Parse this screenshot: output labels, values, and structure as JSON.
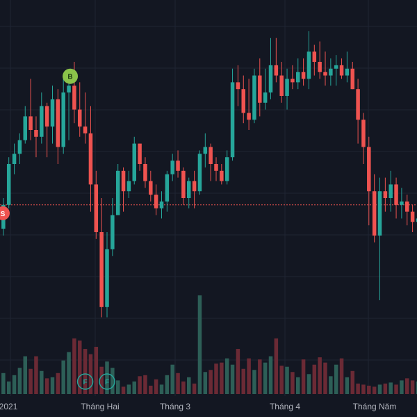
{
  "chart_data": {
    "type": "candlestick",
    "background": "#131722",
    "colors": {
      "up": "#26a69a",
      "down": "#ef5350",
      "vol_up": "#2d5f57",
      "vol_down": "#6b2a35",
      "grid": "#1f2433",
      "ref_line": "#ef5350",
      "marker_b": "#8bc34a",
      "marker_f": "#26a69a",
      "marker_s": "#ef5350"
    },
    "x_ticks": [
      "2021",
      "Tháng Hai",
      "Tháng 3",
      "Tháng 4",
      "Tháng Năm"
    ],
    "grid": true,
    "price_scale": {
      "min": 0,
      "max": 100
    },
    "reference_price": 48,
    "markers": [
      {
        "label": "B",
        "index": 13,
        "kind": "buy"
      },
      {
        "label": "F",
        "index": 16,
        "kind": "flag"
      },
      {
        "label": "F",
        "index": 20,
        "kind": "flag"
      },
      {
        "label": "S",
        "index": 0,
        "kind": "sell"
      }
    ],
    "candles": [
      [
        38,
        43,
        34,
        41
      ],
      [
        41,
        50,
        39,
        48
      ],
      [
        48,
        62,
        47,
        60
      ],
      [
        60,
        66,
        57,
        63
      ],
      [
        63,
        69,
        60,
        67
      ],
      [
        67,
        77,
        66,
        74
      ],
      [
        74,
        85,
        67,
        70
      ],
      [
        70,
        74,
        62,
        68
      ],
      [
        68,
        81,
        66,
        77
      ],
      [
        77,
        78,
        62,
        71
      ],
      [
        71,
        83,
        66,
        79
      ],
      [
        79,
        82,
        60,
        65
      ],
      [
        65,
        85,
        63,
        81
      ],
      [
        81,
        87,
        67,
        83
      ],
      [
        83,
        90,
        72,
        76
      ],
      [
        76,
        84,
        68,
        71
      ],
      [
        71,
        81,
        66,
        69
      ],
      [
        69,
        77,
        46,
        54
      ],
      [
        54,
        58,
        38,
        40
      ],
      [
        40,
        50,
        15,
        18
      ],
      [
        18,
        40,
        15,
        35
      ],
      [
        35,
        50,
        33,
        45
      ],
      [
        45,
        60,
        45,
        58
      ],
      [
        58,
        59,
        46,
        52
      ],
      [
        52,
        58,
        50,
        55
      ],
      [
        55,
        68,
        54,
        66
      ],
      [
        66,
        66,
        58,
        60
      ],
      [
        60,
        62,
        53,
        55
      ],
      [
        55,
        58,
        49,
        51
      ],
      [
        51,
        54,
        45,
        47
      ],
      [
        47,
        52,
        44,
        49
      ],
      [
        49,
        58,
        46,
        57
      ],
      [
        57,
        63,
        55,
        61
      ],
      [
        61,
        64,
        56,
        58
      ],
      [
        58,
        59,
        48,
        50
      ],
      [
        50,
        56,
        47,
        55
      ],
      [
        55,
        58,
        47,
        52
      ],
      [
        52,
        64,
        51,
        63
      ],
      [
        63,
        69,
        59,
        65
      ],
      [
        65,
        66,
        55,
        60
      ],
      [
        60,
        62,
        55,
        58
      ],
      [
        58,
        60,
        54,
        55
      ],
      [
        55,
        64,
        54,
        62
      ],
      [
        62,
        88,
        61,
        84
      ],
      [
        84,
        89,
        77,
        82
      ],
      [
        82,
        86,
        72,
        75
      ],
      [
        75,
        85,
        70,
        73
      ],
      [
        73,
        88,
        72,
        86
      ],
      [
        86,
        91,
        74,
        78
      ],
      [
        78,
        88,
        76,
        81
      ],
      [
        81,
        97,
        79,
        89
      ],
      [
        89,
        97,
        84,
        86
      ],
      [
        86,
        90,
        78,
        80
      ],
      [
        80,
        88,
        76,
        85
      ],
      [
        85,
        89,
        82,
        84
      ],
      [
        84,
        91,
        82,
        87
      ],
      [
        87,
        91,
        83,
        85
      ],
      [
        85,
        99,
        82,
        93
      ],
      [
        93,
        95,
        86,
        90
      ],
      [
        90,
        96,
        85,
        87
      ],
      [
        87,
        93,
        83,
        86
      ],
      [
        86,
        91,
        83,
        88
      ],
      [
        88,
        92,
        83,
        89
      ],
      [
        89,
        91,
        85,
        86
      ],
      [
        86,
        93,
        84,
        88
      ],
      [
        88,
        90,
        82,
        82
      ],
      [
        82,
        85,
        66,
        73
      ],
      [
        73,
        75,
        60,
        65
      ],
      [
        65,
        68,
        42,
        52
      ],
      [
        52,
        57,
        37,
        39
      ],
      [
        39,
        56,
        20,
        52
      ],
      [
        52,
        56,
        46,
        50
      ],
      [
        50,
        58,
        46,
        54
      ],
      [
        54,
        56,
        44,
        48
      ],
      [
        48,
        53,
        44,
        49
      ],
      [
        49,
        51,
        42,
        46
      ],
      [
        46,
        48,
        40,
        43
      ],
      [
        43,
        47,
        38,
        44
      ],
      [
        44,
        46,
        39,
        42
      ]
    ],
    "volumes": [
      1.0,
      2.0,
      1.2,
      1.8,
      2.5,
      3.6,
      2.4,
      3.6,
      2.2,
      1.5,
      1.6,
      2.0,
      3.2,
      4.0,
      5.3,
      5.1,
      4.3,
      3.8,
      4.5,
      2.6,
      3.1,
      2.5,
      1.3,
      0.7,
      0.9,
      1.2,
      1.7,
      1.8,
      0.8,
      1.4,
      0.9,
      1.8,
      2.8,
      2.0,
      1.2,
      1.6,
      1.0,
      9.4,
      2.1,
      2.3,
      2.9,
      3.0,
      3.4,
      2.8,
      4.3,
      2.4,
      3.4,
      2.3,
      3.3,
      3.0,
      3.6,
      5.3,
      2.7,
      2.6,
      2.1,
      1.6,
      3.3,
      1.9,
      2.8,
      3.5,
      3.0,
      1.7,
      2.8,
      3.4,
      1.6,
      2.2,
      1.0,
      0.9,
      0.8,
      0.7,
      0.9,
      1.0,
      1.1,
      0.9,
      1.3,
      1.5,
      1.3,
      1.2,
      1.2
    ]
  }
}
